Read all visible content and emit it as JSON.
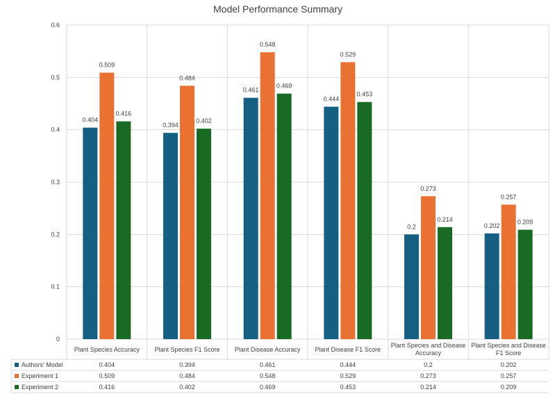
{
  "chart_data": {
    "type": "bar",
    "title": "Model Performance Summary",
    "xlabel": "",
    "ylabel": "",
    "ylim": [
      0,
      0.6
    ],
    "yticks": [
      "0",
      "0.1",
      "0.2",
      "0.3",
      "0.4",
      "0.5",
      "0.6"
    ],
    "grid": true,
    "legend": "data-table-bottom",
    "categories": [
      [
        "Plant Species Accuracy"
      ],
      [
        "Plant Species F1 Score"
      ],
      [
        "Plant Disease Accuracy"
      ],
      [
        "Plant Disease F1 Score"
      ],
      [
        "Plant Species and Disease",
        "Accuracy"
      ],
      [
        "Plant Species and Disease",
        "F1 Score"
      ]
    ],
    "series": [
      {
        "name": "Authors' Model",
        "color": "#156082",
        "values": [
          0.404,
          0.394,
          0.461,
          0.444,
          0.2,
          0.202
        ]
      },
      {
        "name": "Experiment 1",
        "color": "#E97132",
        "values": [
          0.509,
          0.484,
          0.548,
          0.529,
          0.273,
          0.257
        ]
      },
      {
        "name": "Experiment 2",
        "color": "#196B24",
        "values": [
          0.416,
          0.402,
          0.469,
          0.453,
          0.214,
          0.209
        ]
      }
    ]
  }
}
